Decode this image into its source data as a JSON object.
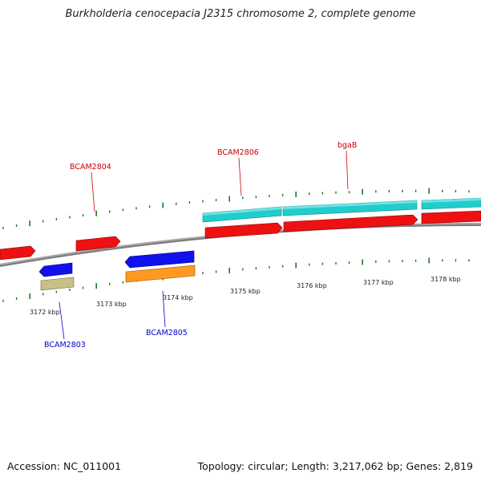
{
  "title": "Burkholderia cenocepacia J2315 chromosome 2, complete genome",
  "footer": {
    "accession": "Accession: NC_011001",
    "stats": "Topology: circular; Length: 3,217,062 bp; Genes: 2,819"
  },
  "colors": {
    "forward_cds": "#ee1111",
    "reverse_cds": "#1111ee",
    "forward_region": "#22cccc",
    "reverse_orange": "#ff9922",
    "reverse_khaki": "#c8c088",
    "backbone": "#8a8a8a",
    "ticks": "#227722",
    "forward_label": "#cc0000",
    "reverse_label": "#0000cc"
  },
  "kbp_labels": [
    "3172 kbp",
    "3173 kbp",
    "3174 kbp",
    "3175 kbp",
    "3176 kbp",
    "3177 kbp",
    "3178 kbp"
  ],
  "gene_labels": {
    "forward": [
      "BCAM2804",
      "BCAM2806",
      "bgaB"
    ],
    "reverse": [
      "BCAM2803",
      "BCAM2805"
    ]
  }
}
